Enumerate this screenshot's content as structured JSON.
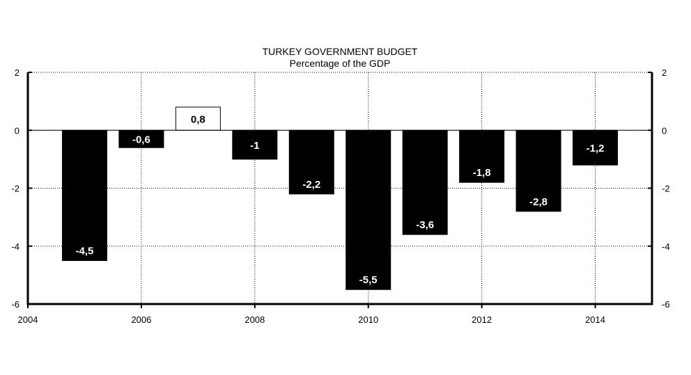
{
  "chart_data": {
    "type": "bar",
    "title": "TURKEY GOVERNMENT BUDGET",
    "subtitle": "Percentage of the GDP",
    "xlabel": "",
    "ylabel": "",
    "categories": [
      "2005",
      "2006",
      "2007",
      "2008",
      "2009",
      "2010",
      "2011",
      "2012",
      "2013",
      "2014"
    ],
    "x": [
      2005,
      2006,
      2007,
      2008,
      2009,
      2010,
      2011,
      2012,
      2013,
      2014
    ],
    "values": [
      -4.5,
      -0.6,
      0.8,
      -1,
      -2.2,
      -5.5,
      -3.6,
      -1.8,
      -2.8,
      -1.2
    ],
    "data_labels": [
      "-4,5",
      "-0,6",
      "0,8",
      "-1",
      "-2,2",
      "-5,5",
      "-3,6",
      "-1,8",
      "-2,8",
      "-1,2"
    ],
    "xlim": [
      2004,
      2015
    ],
    "ylim": [
      -6,
      2
    ],
    "x_ticks": [
      2004,
      2006,
      2008,
      2010,
      2012,
      2014
    ],
    "x_tick_labels": [
      "2004",
      "2006",
      "2008",
      "2010",
      "2012",
      "2014"
    ],
    "y_ticks": [
      2,
      0,
      -2,
      -4,
      -6
    ],
    "y_tick_labels": [
      "2",
      "0",
      "-2",
      "-4",
      "-6"
    ],
    "grid": true,
    "grid_style": "dotted",
    "right_axis_mirrored": true,
    "colors": {
      "negative_bar": "#000000",
      "positive_bar": "#ffffff",
      "axis": "#000000",
      "grid": "#000000",
      "negative_label": "#ffffff",
      "positive_label": "#000000"
    }
  }
}
